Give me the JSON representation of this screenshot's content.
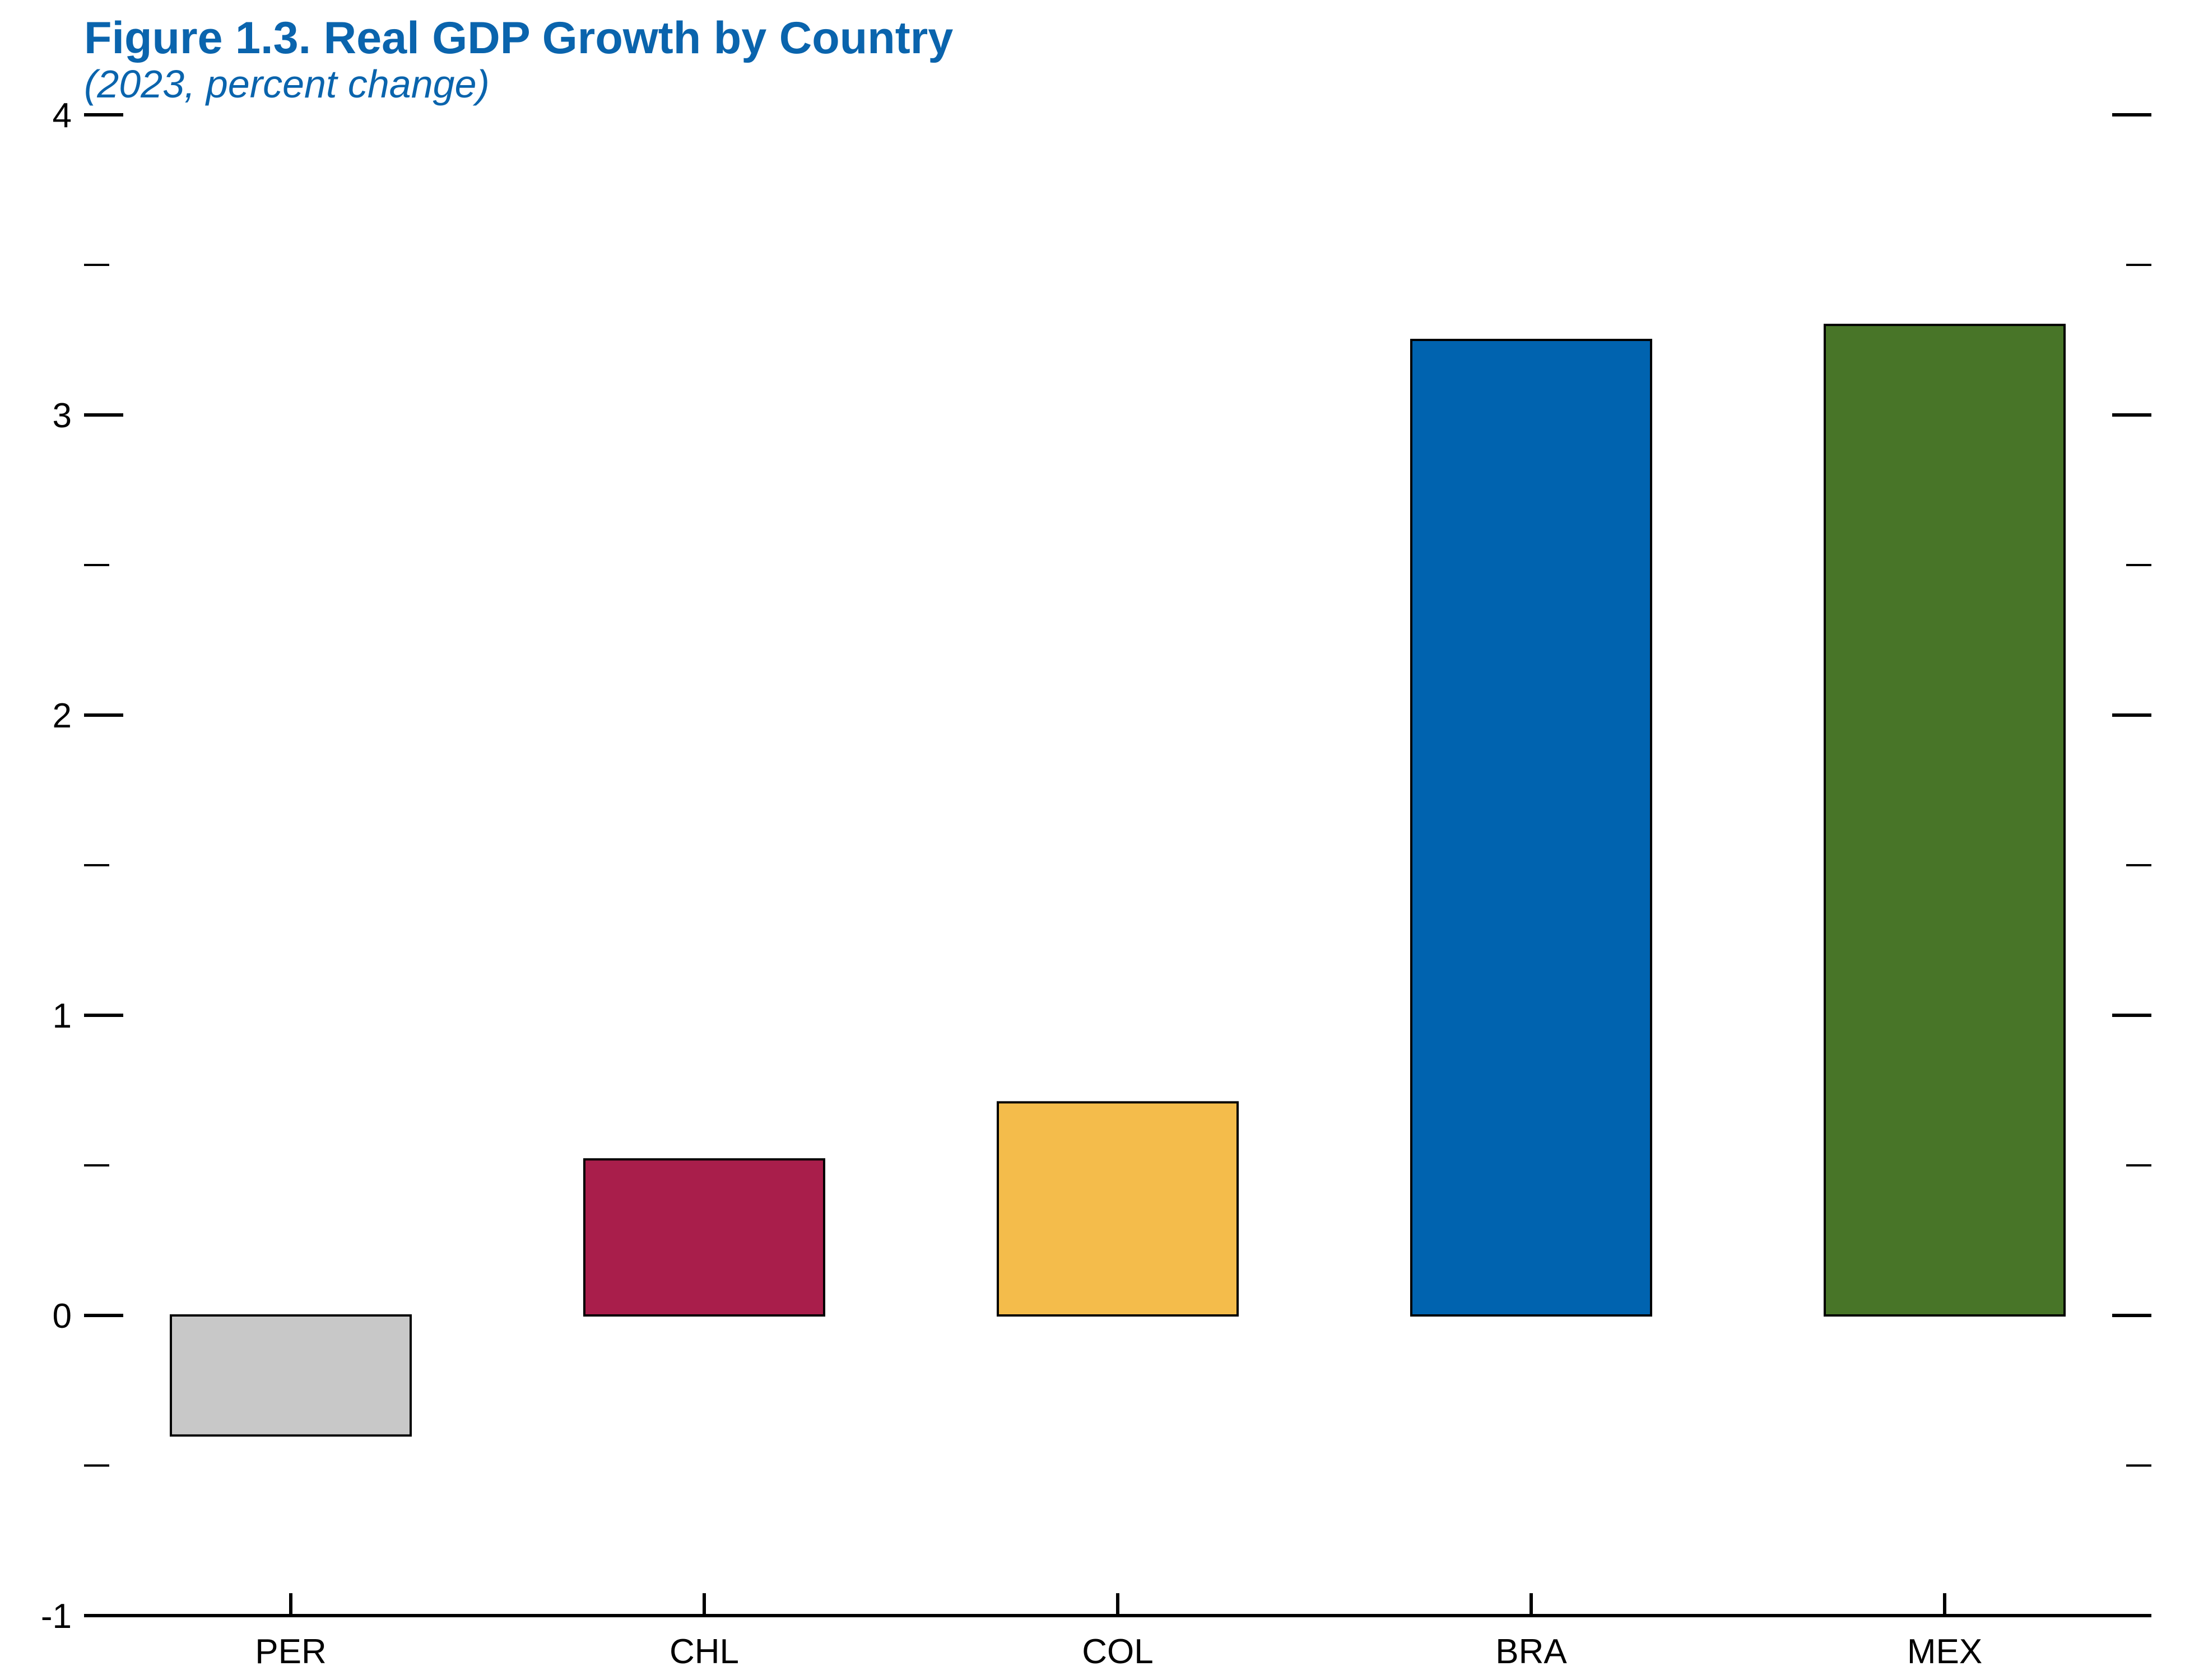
{
  "chart_data": {
    "type": "bar",
    "title": "Figure 1.3.  Real GDP Growth by Country",
    "subtitle": "(2023, percent change)",
    "xlabel": "",
    "ylabel": "",
    "categories": [
      "PER",
      "CHL",
      "COL",
      "BRA",
      "MEX"
    ],
    "values": [
      -0.4,
      0.52,
      0.71,
      3.25,
      3.3
    ],
    "colors": [
      "#c8c8c8",
      "#a91e4b",
      "#f4bc4b",
      "#0063af",
      "#487528"
    ],
    "ylim": [
      -1,
      4
    ],
    "yticks": [
      "-1",
      "0",
      "1",
      "2",
      "3",
      "4"
    ],
    "minor_tick_step": 0.5,
    "grid": false,
    "legend": "none"
  }
}
